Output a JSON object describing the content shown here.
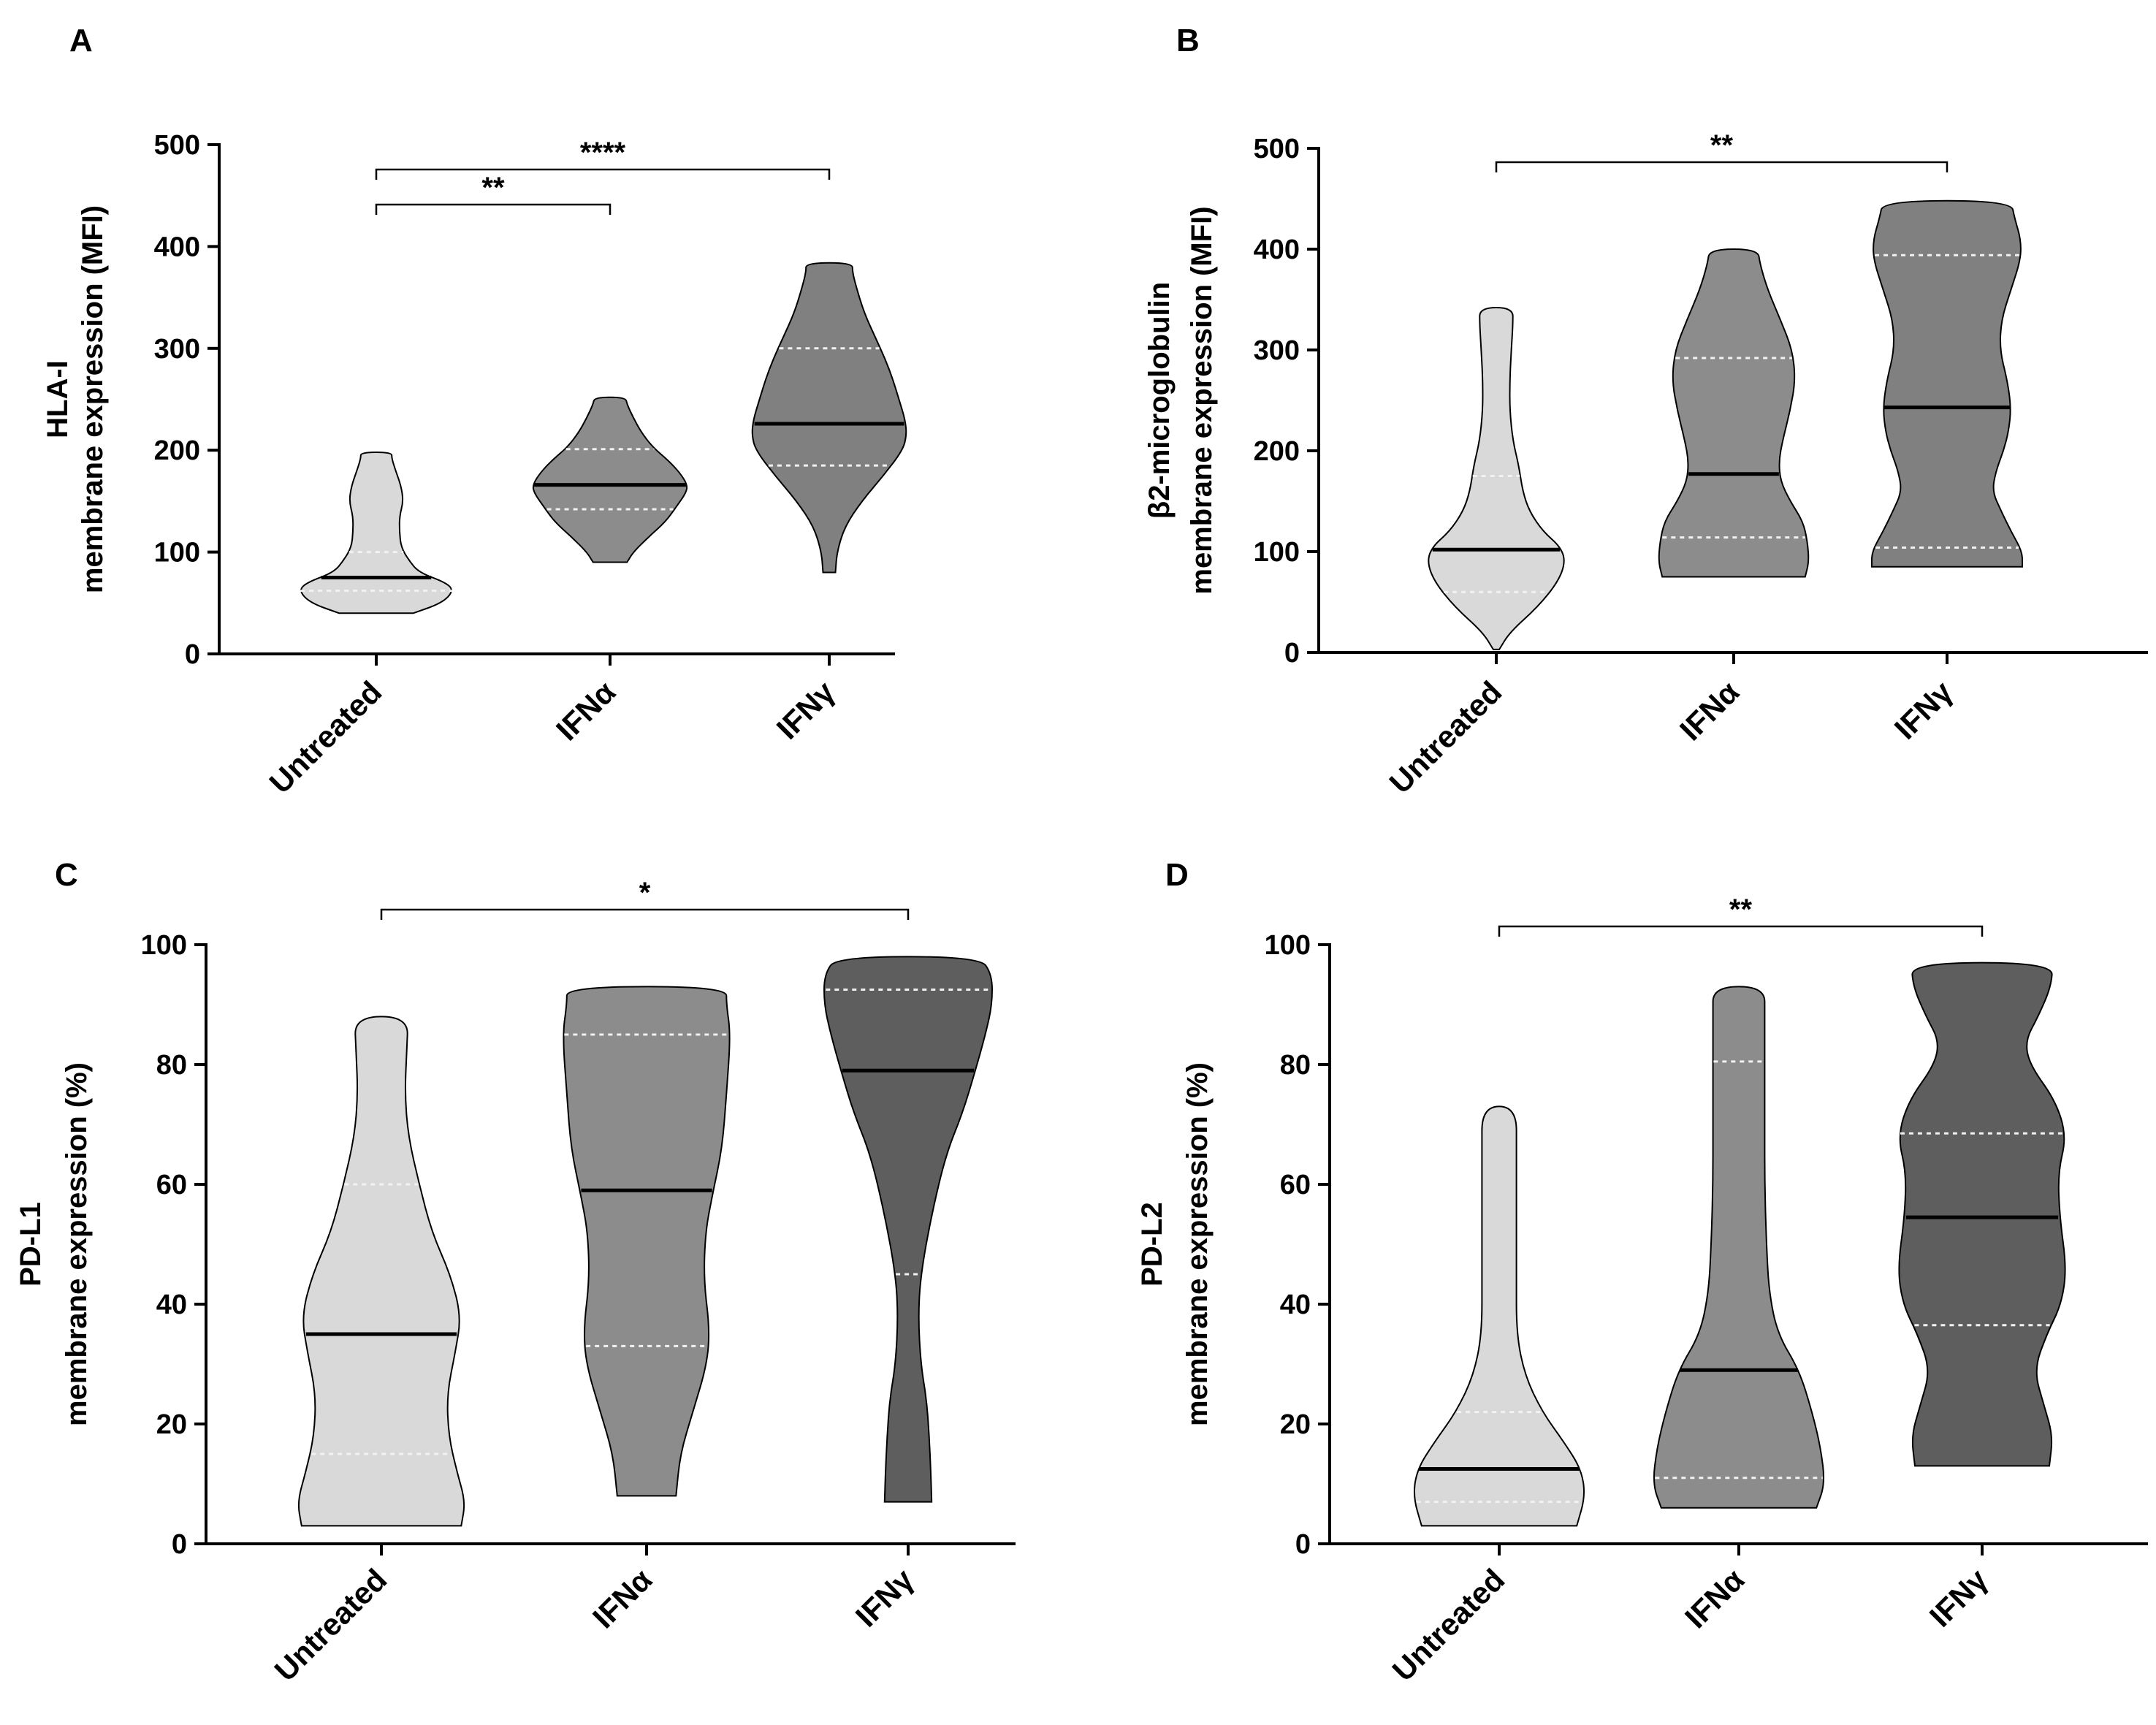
{
  "chart_data": [
    {
      "panel": "A",
      "type": "violin",
      "ylabel_line1": "HLA-I",
      "ylabel_line2": "membrane expression (MFI)",
      "ylim": [
        0,
        500
      ],
      "yticks": [
        "0",
        "100",
        "200",
        "300",
        "400",
        "500"
      ],
      "categories": [
        "Untreated",
        "IFNα",
        "IFNγ"
      ],
      "colors": [
        "#d9d9d9",
        "#8c8c8c",
        "#808080"
      ],
      "violins": [
        {
          "min": 40,
          "max": 198,
          "q1": 62,
          "median": 75,
          "q3": 100,
          "profile": [
            [
              40,
              0.48
            ],
            [
              50,
              0.85
            ],
            [
              62,
              1.0
            ],
            [
              70,
              0.9
            ],
            [
              80,
              0.55
            ],
            [
              92,
              0.42
            ],
            [
              105,
              0.32
            ],
            [
              120,
              0.3
            ],
            [
              135,
              0.3
            ],
            [
              150,
              0.35
            ],
            [
              165,
              0.32
            ],
            [
              180,
              0.25
            ],
            [
              192,
              0.2
            ],
            [
              198,
              0.2
            ]
          ]
        },
        {
          "min": 90,
          "max": 252,
          "q1": 142,
          "median": 166,
          "q3": 201,
          "profile": [
            [
              90,
              0.22
            ],
            [
              100,
              0.3
            ],
            [
              115,
              0.5
            ],
            [
              130,
              0.72
            ],
            [
              145,
              0.86
            ],
            [
              158,
              0.98
            ],
            [
              166,
              1.0
            ],
            [
              178,
              0.9
            ],
            [
              190,
              0.75
            ],
            [
              203,
              0.55
            ],
            [
              218,
              0.4
            ],
            [
              232,
              0.3
            ],
            [
              245,
              0.22
            ],
            [
              252,
              0.2
            ]
          ]
        },
        {
          "min": 80,
          "max": 384,
          "q1": 185,
          "median": 226,
          "q3": 300,
          "profile": [
            [
              80,
              0.08
            ],
            [
              100,
              0.1
            ],
            [
              125,
              0.2
            ],
            [
              150,
              0.42
            ],
            [
              175,
              0.7
            ],
            [
              200,
              0.95
            ],
            [
              215,
              1.0
            ],
            [
              230,
              0.98
            ],
            [
              250,
              0.9
            ],
            [
              270,
              0.82
            ],
            [
              290,
              0.72
            ],
            [
              310,
              0.6
            ],
            [
              335,
              0.45
            ],
            [
              360,
              0.35
            ],
            [
              375,
              0.3
            ],
            [
              384,
              0.3
            ]
          ]
        }
      ],
      "significance": [
        {
          "from": 0,
          "to": 1,
          "label": "**"
        },
        {
          "from": 0,
          "to": 2,
          "label": "****"
        }
      ]
    },
    {
      "panel": "B",
      "type": "violin",
      "ylabel_line1": "β2-microglobulin",
      "ylabel_line2": "membrane expression (MFI)",
      "ylim": [
        0,
        500
      ],
      "yticks": [
        "0",
        "100",
        "200",
        "300",
        "400",
        "500"
      ],
      "categories": [
        "Untreated",
        "IFNα",
        "IFNγ"
      ],
      "colors": [
        "#d9d9d9",
        "#8c8c8c",
        "#808080"
      ],
      "violins": [
        {
          "min": 3,
          "max": 342,
          "q1": 60,
          "median": 102,
          "q3": 175,
          "profile": [
            [
              3,
              0.04
            ],
            [
              20,
              0.18
            ],
            [
              45,
              0.55
            ],
            [
              70,
              0.82
            ],
            [
              90,
              0.92
            ],
            [
              105,
              0.85
            ],
            [
              120,
              0.62
            ],
            [
              140,
              0.44
            ],
            [
              160,
              0.35
            ],
            [
              185,
              0.3
            ],
            [
              210,
              0.22
            ],
            [
              240,
              0.18
            ],
            [
              270,
              0.18
            ],
            [
              300,
              0.2
            ],
            [
              325,
              0.22
            ],
            [
              342,
              0.22
            ]
          ]
        },
        {
          "min": 75,
          "max": 400,
          "q1": 114,
          "median": 177,
          "q3": 292,
          "profile": [
            [
              75,
              0.95
            ],
            [
              90,
              1.0
            ],
            [
              110,
              0.98
            ],
            [
              130,
              0.92
            ],
            [
              150,
              0.75
            ],
            [
              170,
              0.62
            ],
            [
              190,
              0.6
            ],
            [
              210,
              0.65
            ],
            [
              240,
              0.75
            ],
            [
              270,
              0.82
            ],
            [
              300,
              0.78
            ],
            [
              330,
              0.62
            ],
            [
              360,
              0.45
            ],
            [
              385,
              0.35
            ],
            [
              400,
              0.32
            ]
          ]
        },
        {
          "min": 85,
          "max": 448,
          "q1": 104,
          "median": 243,
          "q3": 394,
          "profile": [
            [
              85,
              1.0
            ],
            [
              100,
              1.0
            ],
            [
              120,
              0.85
            ],
            [
              140,
              0.72
            ],
            [
              160,
              0.6
            ],
            [
              180,
              0.65
            ],
            [
              200,
              0.75
            ],
            [
              220,
              0.82
            ],
            [
              243,
              0.85
            ],
            [
              270,
              0.8
            ],
            [
              300,
              0.7
            ],
            [
              330,
              0.72
            ],
            [
              360,
              0.85
            ],
            [
              390,
              0.98
            ],
            [
              410,
              0.98
            ],
            [
              430,
              0.9
            ],
            [
              448,
              0.85
            ]
          ]
        }
      ],
      "significance": [
        {
          "from": 0,
          "to": 2,
          "label": "**"
        }
      ]
    },
    {
      "panel": "C",
      "type": "violin",
      "ylabel_line1": "PD-L1",
      "ylabel_line2": "membrane expression (%)",
      "ylim": [
        0,
        100
      ],
      "yticks": [
        "0",
        "20",
        "40",
        "60",
        "80",
        "100"
      ],
      "categories": [
        "Untreated",
        "IFNα",
        "IFNγ"
      ],
      "colors": [
        "#d9d9d9",
        "#8c8c8c",
        "#5e5e5e"
      ],
      "violins": [
        {
          "min": 3,
          "max": 88,
          "q1": 15,
          "median": 35,
          "q3": 60,
          "profile": [
            [
              3,
              0.95
            ],
            [
              7,
              1.0
            ],
            [
              12,
              0.9
            ],
            [
              18,
              0.8
            ],
            [
              25,
              0.78
            ],
            [
              32,
              0.88
            ],
            [
              38,
              0.95
            ],
            [
              45,
              0.82
            ],
            [
              52,
              0.6
            ],
            [
              60,
              0.45
            ],
            [
              68,
              0.32
            ],
            [
              75,
              0.28
            ],
            [
              82,
              0.3
            ],
            [
              88,
              0.32
            ]
          ]
        },
        {
          "min": 8,
          "max": 93,
          "q1": 33,
          "median": 59,
          "q3": 85,
          "profile": [
            [
              8,
              0.35
            ],
            [
              15,
              0.4
            ],
            [
              22,
              0.55
            ],
            [
              30,
              0.72
            ],
            [
              36,
              0.75
            ],
            [
              44,
              0.68
            ],
            [
              52,
              0.7
            ],
            [
              58,
              0.78
            ],
            [
              66,
              0.9
            ],
            [
              75,
              0.95
            ],
            [
              85,
              1.0
            ],
            [
              90,
              0.95
            ],
            [
              93,
              0.95
            ]
          ]
        },
        {
          "min": 7,
          "max": 98,
          "q1": 45,
          "median": 79,
          "q3": 92.5,
          "profile": [
            [
              7,
              0.28
            ],
            [
              12,
              0.27
            ],
            [
              18,
              0.25
            ],
            [
              24,
              0.22
            ],
            [
              30,
              0.15
            ],
            [
              38,
              0.12
            ],
            [
              45,
              0.15
            ],
            [
              55,
              0.28
            ],
            [
              65,
              0.45
            ],
            [
              72,
              0.65
            ],
            [
              79,
              0.8
            ],
            [
              85,
              0.92
            ],
            [
              90,
              1.0
            ],
            [
              95,
              1.0
            ],
            [
              98,
              0.85
            ]
          ]
        }
      ],
      "significance": [
        {
          "from": 0,
          "to": 2,
          "label": "*"
        }
      ]
    },
    {
      "panel": "D",
      "type": "violin",
      "ylabel_line1": "PD-L2",
      "ylabel_line2": "membrane expression (%)",
      "ylim": [
        0,
        100
      ],
      "yticks": [
        "0",
        "20",
        "40",
        "60",
        "80",
        "100"
      ],
      "categories": [
        "Untreated",
        "IFNα",
        "IFNγ"
      ],
      "colors": [
        "#d9d9d9",
        "#8c8c8c",
        "#5e5e5e"
      ],
      "violins": [
        {
          "min": 3,
          "max": 73,
          "q1": 7,
          "median": 12.5,
          "q3": 22,
          "profile": [
            [
              3,
              0.9
            ],
            [
              8,
              1.0
            ],
            [
              12.5,
              0.95
            ],
            [
              17,
              0.75
            ],
            [
              22,
              0.5
            ],
            [
              28,
              0.3
            ],
            [
              35,
              0.2
            ],
            [
              45,
              0.2
            ],
            [
              55,
              0.2
            ],
            [
              65,
              0.2
            ],
            [
              73,
              0.2
            ]
          ]
        },
        {
          "min": 6,
          "max": 93,
          "q1": 11,
          "median": 29,
          "q3": 80.5,
          "profile": [
            [
              6,
              0.9
            ],
            [
              10,
              1.0
            ],
            [
              16,
              0.95
            ],
            [
              22,
              0.85
            ],
            [
              29,
              0.7
            ],
            [
              35,
              0.45
            ],
            [
              42,
              0.35
            ],
            [
              50,
              0.32
            ],
            [
              60,
              0.3
            ],
            [
              70,
              0.3
            ],
            [
              80,
              0.3
            ],
            [
              88,
              0.3
            ],
            [
              93,
              0.3
            ]
          ]
        },
        {
          "min": 13,
          "max": 97,
          "q1": 36.5,
          "median": 54.5,
          "q3": 68.5,
          "profile": [
            [
              13,
              0.78
            ],
            [
              18,
              0.82
            ],
            [
              23,
              0.72
            ],
            [
              29,
              0.6
            ],
            [
              35,
              0.75
            ],
            [
              40,
              0.92
            ],
            [
              46,
              0.98
            ],
            [
              54.5,
              0.9
            ],
            [
              62,
              0.88
            ],
            [
              68,
              0.98
            ],
            [
              74,
              0.85
            ],
            [
              80,
              0.55
            ],
            [
              84,
              0.5
            ],
            [
              88,
              0.65
            ],
            [
              93,
              0.8
            ],
            [
              97,
              0.82
            ]
          ]
        }
      ],
      "significance": [
        {
          "from": 0,
          "to": 2,
          "label": "**"
        }
      ]
    }
  ]
}
